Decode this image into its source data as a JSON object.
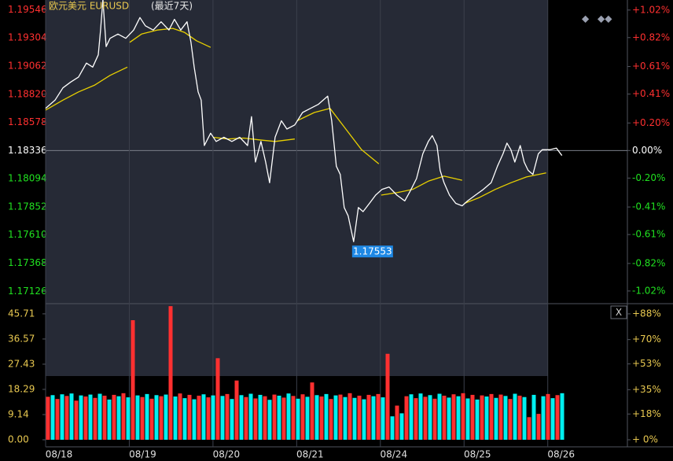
{
  "chart_data": [
    {
      "type": "line",
      "title": "欧元美元 EURUSD",
      "subtitle": "(最近7天)",
      "color": "#ffffff",
      "x": [
        0.0,
        0.113,
        0.207,
        0.3,
        0.394,
        0.488,
        0.563,
        0.629,
        0.657,
        0.685,
        0.723,
        0.77,
        0.864,
        0.958,
        1.052,
        1.127,
        1.192,
        1.286,
        1.38,
        1.474,
        1.54,
        1.615,
        1.69,
        1.737,
        1.775,
        1.822,
        1.859,
        1.897,
        1.972,
        2.038,
        2.131,
        2.225,
        2.319,
        2.413,
        2.46,
        2.507,
        2.573,
        2.629,
        2.676,
        2.742,
        2.817,
        2.883,
        2.977,
        3.07,
        3.164,
        3.258,
        3.371,
        3.418,
        3.474,
        3.521,
        3.568,
        3.615,
        3.681,
        3.737,
        3.793,
        3.869,
        3.944,
        4.019,
        4.103,
        4.197,
        4.291,
        4.357,
        4.432,
        4.507,
        4.573,
        4.62,
        4.676,
        4.714,
        4.761,
        4.826,
        4.901,
        4.977,
        5.042,
        5.136,
        5.23,
        5.324,
        5.399,
        5.465,
        5.512,
        5.559,
        5.606,
        5.671,
        5.718,
        5.765,
        5.822,
        5.887,
        5.934,
        6.028,
        6.103,
        6.169
      ],
      "values": [
        1.18698,
        1.18769,
        1.18875,
        1.18925,
        1.18968,
        1.19088,
        1.19053,
        1.19159,
        1.19372,
        1.19634,
        1.1923,
        1.19301,
        1.19337,
        1.19301,
        1.19372,
        1.19479,
        1.19408,
        1.19372,
        1.19443,
        1.19372,
        1.19464,
        1.19372,
        1.19443,
        1.19266,
        1.19053,
        1.1884,
        1.18769,
        1.18379,
        1.18485,
        1.18414,
        1.1845,
        1.18414,
        1.1845,
        1.18379,
        1.18627,
        1.18237,
        1.18414,
        1.18237,
        1.18059,
        1.1845,
        1.18592,
        1.18521,
        1.18556,
        1.18663,
        1.18698,
        1.18733,
        1.18804,
        1.18592,
        1.18201,
        1.1813,
        1.17846,
        1.17775,
        1.17553,
        1.17846,
        1.17811,
        1.17882,
        1.17953,
        1.18002,
        1.18023,
        1.17953,
        1.17903,
        1.17988,
        1.18095,
        1.18308,
        1.18414,
        1.18464,
        1.18379,
        1.18166,
        1.18059,
        1.17953,
        1.17882,
        1.17861,
        1.17903,
        1.17953,
        1.18002,
        1.18059,
        1.18201,
        1.18308,
        1.184,
        1.18343,
        1.18237,
        1.18379,
        1.18237,
        1.18166,
        1.1813,
        1.18308,
        1.18343,
        1.18343,
        1.18357,
        1.18293
      ],
      "ma": {
        "color": "#e8d000",
        "x": [
          0,
          0.207,
          0.394,
          0.582,
          0.77,
          0.977,
          1.0,
          1.005,
          1.146,
          1.333,
          1.521,
          1.662,
          1.803,
          1.972,
          2.0,
          2.0,
          2.178,
          2.366,
          2.554,
          2.742,
          2.977,
          3.0,
          3.005,
          3.211,
          3.399,
          3.587,
          3.775,
          3.981,
          4.0,
          4.009,
          4.197,
          4.385,
          4.573,
          4.761,
          4.977,
          5.0,
          5.005,
          5.183,
          5.371,
          5.559,
          5.746,
          5.981
        ],
        "values": [
          1.18684,
          1.18769,
          1.1884,
          1.18897,
          1.18982,
          1.19053,
          null,
          1.19266,
          1.19337,
          1.19372,
          1.19386,
          1.19351,
          1.1928,
          1.19223,
          null,
          1.1845,
          1.18435,
          1.18443,
          1.18428,
          1.18414,
          1.18435,
          null,
          1.18592,
          1.18663,
          1.18698,
          1.18521,
          1.18343,
          1.18222,
          null,
          1.17953,
          1.17974,
          1.18002,
          1.18073,
          1.18116,
          1.18081,
          null,
          1.17882,
          1.17932,
          1.18002,
          1.18059,
          1.18109,
          1.18144
        ]
      },
      "annotations": [
        {
          "x": 0.685,
          "value": 1.19634
        },
        {
          "x": 3.681,
          "value": 1.17553
        }
      ],
      "xlim": [
        0,
        6.2
      ],
      "xticks": [
        {
          "value": 0,
          "label": "08/18"
        },
        {
          "value": 1,
          "label": "08/19"
        },
        {
          "value": 2,
          "label": "08/20"
        },
        {
          "value": 3,
          "label": "08/21"
        },
        {
          "value": 4,
          "label": "08/24"
        },
        {
          "value": 5,
          "label": "08/25"
        },
        {
          "value": 6,
          "label": "08/26"
        }
      ],
      "ylim": [
        1.1702,
        1.1963
      ],
      "yticks": [
        1.19546,
        1.19304,
        1.19062,
        {
          "value": 1.1882,
          "label": "1.18820"
        },
        1.18578,
        1.18336,
        1.18094,
        1.17852,
        {
          "value": 1.1761,
          "label": "1.17610"
        },
        1.17368,
        1.17126
      ],
      "y2lim": [
        -1.112,
        1.093
      ],
      "y2ticks": [
        {
          "value": 1.02,
          "label": "+1.02%"
        },
        {
          "value": 0.82,
          "label": "+0.82%"
        },
        {
          "value": 0.61,
          "label": "+0.61%"
        },
        {
          "value": 0.41,
          "label": "+0.41%"
        },
        {
          "value": 0.2,
          "label": "+0.20%"
        },
        {
          "value": 0,
          "label": "0.00%"
        },
        {
          "value": -0.2,
          "label": "-0.20%"
        },
        {
          "value": -0.41,
          "label": "-0.41%"
        },
        {
          "value": -0.61,
          "label": "-0.61%"
        },
        {
          "value": -0.82,
          "label": "-0.82%"
        },
        {
          "value": -1.02,
          "label": "-1.02%"
        }
      ]
    },
    {
      "type": "bar",
      "series": [
        {
          "color": "#ff3030",
          "values": [
            15.6,
            14.8,
            15.9,
            14.2,
            15.7,
            15.2,
            16.0,
            16.3,
            16.9,
            43.4,
            15.5,
            14.9,
            15.8,
            48.5,
            16.8,
            16.3,
            16.0,
            15.4,
            29.6,
            16.6,
            21.5,
            15.5,
            15.0,
            15.8,
            16.4,
            15.3,
            15.9,
            16.5,
            20.8,
            15.7,
            14.8,
            16.4,
            16.9,
            16.0,
            16.3,
            16.6,
            31.2,
            12.4,
            15.8,
            15.1,
            15.6,
            14.9,
            16.0,
            16.5,
            16.9,
            16.3,
            16.1,
            16.6,
            16.4,
            14.8,
            16.0,
            8.2,
            9.4,
            16.6,
            16.2
          ]
        },
        {
          "color": "#00f0f0",
          "values": [
            16.2,
            16.5,
            16.8,
            16.1,
            16.4,
            16.7,
            14.6,
            15.8,
            15.4,
            16.1,
            16.6,
            16.2,
            16.4,
            15.7,
            15.1,
            14.7,
            16.5,
            16.1,
            15.9,
            14.8,
            16.2,
            16.7,
            16.3,
            14.5,
            16.0,
            16.8,
            14.9,
            15.6,
            16.2,
            16.6,
            16.1,
            15.5,
            15.2,
            14.7,
            15.8,
            15.4,
            8.5,
            9.6,
            16.5,
            16.8,
            16.2,
            16.7,
            15.3,
            15.8,
            15.0,
            14.6,
            15.7,
            15.2,
            15.9,
            16.7,
            15.5,
            16.3,
            15.8,
            15.1,
            16.9
          ]
        }
      ],
      "ylim": [
        -2.57,
        49.4
      ],
      "yticks": [
        45.71,
        36.57,
        27.43,
        18.29,
        9.14,
        {
          "value": 0,
          "label": "0.00"
        }
      ],
      "y2lim": [
        -4.95,
        95.1
      ],
      "y2ticks": [
        {
          "value": 88,
          "label": "+88%"
        },
        {
          "value": 70,
          "label": "+70%"
        },
        {
          "value": 53,
          "label": "+53%"
        },
        {
          "value": 35,
          "label": "+35%"
        },
        {
          "value": 18,
          "label": "+18%"
        },
        {
          "value": 0,
          "label": "+ 0%"
        }
      ]
    }
  ]
}
